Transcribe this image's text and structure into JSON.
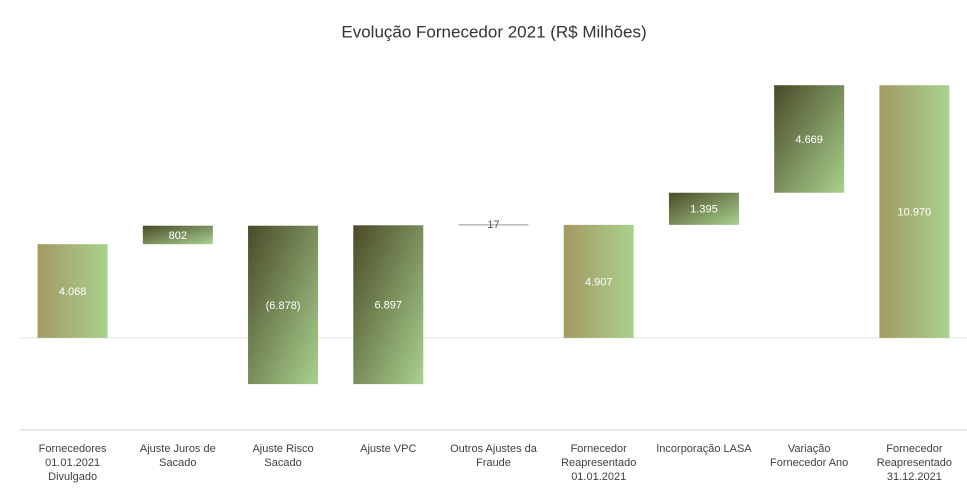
{
  "chart_data": {
    "type": "waterfall",
    "title": "Evolução Fornecedor 2021 (R$ Milhões)",
    "categories": [
      "Fornecedores 01.01.2021 Divulgado",
      "Ajuste Juros de Sacado",
      "Ajuste Risco Sacado",
      "Ajuste VPC",
      "Outros Ajustes da Fraude",
      "Fornecedor Reapresentado 01.01.2021",
      "Incorporação LASA",
      "Variação Fornecedor Ano",
      "Fornecedor Reapresentado 31.12.2021"
    ],
    "values": [
      4068,
      802,
      -6878,
      6897,
      17,
      4907,
      1395,
      4669,
      10970
    ],
    "value_labels": [
      "4.068",
      "802",
      "(6.878)",
      "6.897",
      "17",
      "4.907",
      "1.395",
      "4.669",
      "10.970"
    ],
    "totals": [
      0,
      5,
      8
    ],
    "total_color": [
      "#a39a62",
      "#a9d18e"
    ],
    "step_color": [
      "#4a4a28",
      "#a9d18e"
    ],
    "ylim": [
      -4000,
      12500
    ]
  }
}
